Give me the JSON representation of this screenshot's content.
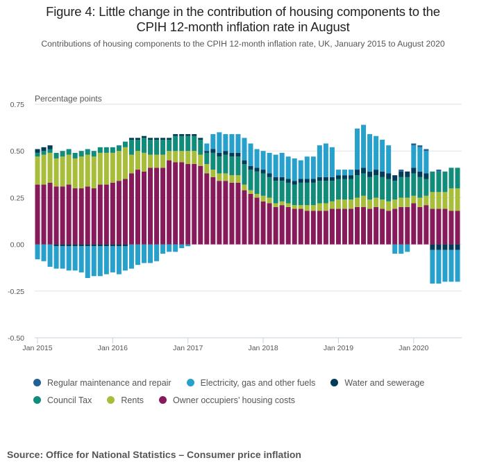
{
  "title_line1": "Figure 4: Little change in the contribution of housing components to the",
  "title_line2": "CPIH 12-month inflation rate in August",
  "subtitle": "Contributions of housing components to the CPIH 12-month inflation rate, UK, January 2015 to August 2020",
  "source": "Source: Office for National Statistics – Consumer price inflation",
  "chart_data": {
    "type": "bar",
    "stacked": true,
    "title": "Figure 4: Little change in the contribution of housing components to the CPIH 12-month inflation rate in August",
    "ylabel": "Percentage points",
    "xlabel": "",
    "ylim": [
      -0.5,
      0.75
    ],
    "yticks": [
      0.75,
      0.5,
      0.25,
      0.0,
      -0.25,
      -0.5
    ],
    "ytick_labels": [
      "0.75",
      "0.50",
      "0.25",
      "0.00",
      "-0.25",
      "-0.50"
    ],
    "xtick_labels": [
      "Jan 2015",
      "Jan 2016",
      "Jan 2017",
      "Jan 2018",
      "Jan 2019",
      "Jan 2020"
    ],
    "xtick_index": [
      0,
      12,
      24,
      36,
      48,
      60
    ],
    "grid": true,
    "legend_position": "bottom",
    "categories": [
      "Jan 2015",
      "Feb 2015",
      "Mar 2015",
      "Apr 2015",
      "May 2015",
      "Jun 2015",
      "Jul 2015",
      "Aug 2015",
      "Sep 2015",
      "Oct 2015",
      "Nov 2015",
      "Dec 2015",
      "Jan 2016",
      "Feb 2016",
      "Mar 2016",
      "Apr 2016",
      "May 2016",
      "Jun 2016",
      "Jul 2016",
      "Aug 2016",
      "Sep 2016",
      "Oct 2016",
      "Nov 2016",
      "Dec 2016",
      "Jan 2017",
      "Feb 2017",
      "Mar 2017",
      "Apr 2017",
      "May 2017",
      "Jun 2017",
      "Jul 2017",
      "Aug 2017",
      "Sep 2017",
      "Oct 2017",
      "Nov 2017",
      "Dec 2017",
      "Jan 2018",
      "Feb 2018",
      "Mar 2018",
      "Apr 2018",
      "May 2018",
      "Jun 2018",
      "Jul 2018",
      "Aug 2018",
      "Sep 2018",
      "Oct 2018",
      "Nov 2018",
      "Dec 2018",
      "Jan 2019",
      "Feb 2019",
      "Mar 2019",
      "Apr 2019",
      "May 2019",
      "Jun 2019",
      "Jul 2019",
      "Aug 2019",
      "Sep 2019",
      "Oct 2019",
      "Nov 2019",
      "Dec 2019",
      "Jan 2020",
      "Feb 2020",
      "Mar 2020",
      "Apr 2020",
      "May 2020",
      "Jun 2020",
      "Jul 2020",
      "Aug 2020"
    ],
    "series": [
      {
        "name": "Owner occupiers’ housing costs",
        "color": "#871a5b",
        "values": [
          0.32,
          0.32,
          0.33,
          0.31,
          0.31,
          0.32,
          0.3,
          0.3,
          0.31,
          0.3,
          0.32,
          0.32,
          0.33,
          0.34,
          0.35,
          0.38,
          0.4,
          0.39,
          0.41,
          0.41,
          0.41,
          0.45,
          0.44,
          0.44,
          0.43,
          0.43,
          0.42,
          0.38,
          0.36,
          0.34,
          0.34,
          0.33,
          0.33,
          0.29,
          0.27,
          0.25,
          0.23,
          0.22,
          0.2,
          0.21,
          0.2,
          0.19,
          0.19,
          0.18,
          0.18,
          0.18,
          0.18,
          0.19,
          0.19,
          0.19,
          0.19,
          0.2,
          0.2,
          0.19,
          0.2,
          0.19,
          0.18,
          0.19,
          0.2,
          0.2,
          0.22,
          0.2,
          0.21,
          0.19,
          0.19,
          0.19,
          0.18,
          0.18
        ]
      },
      {
        "name": "Rents",
        "color": "#a8bd3a",
        "values": [
          0.15,
          0.16,
          0.16,
          0.15,
          0.16,
          0.16,
          0.16,
          0.17,
          0.17,
          0.17,
          0.17,
          0.17,
          0.16,
          0.16,
          0.17,
          0.1,
          0.1,
          0.1,
          0.07,
          0.07,
          0.07,
          0.05,
          0.06,
          0.06,
          0.07,
          0.07,
          0.06,
          0.05,
          0.04,
          0.04,
          0.04,
          0.04,
          0.04,
          0.03,
          0.02,
          0.02,
          0.03,
          0.03,
          0.02,
          0.02,
          0.02,
          0.02,
          0.02,
          0.03,
          0.03,
          0.04,
          0.04,
          0.04,
          0.05,
          0.05,
          0.05,
          0.05,
          0.06,
          0.05,
          0.05,
          0.05,
          0.05,
          0.05,
          0.05,
          0.05,
          0.04,
          0.05,
          0.05,
          0.09,
          0.09,
          0.09,
          0.12,
          0.12
        ]
      },
      {
        "name": "Council Tax",
        "color": "#118c7b",
        "values": [
          0.02,
          0.02,
          0.02,
          0.03,
          0.03,
          0.03,
          0.03,
          0.03,
          0.03,
          0.03,
          0.03,
          0.03,
          0.03,
          0.03,
          0.03,
          0.08,
          0.06,
          0.08,
          0.08,
          0.08,
          0.08,
          0.06,
          0.08,
          0.08,
          0.08,
          0.08,
          0.08,
          0.06,
          0.09,
          0.09,
          0.1,
          0.1,
          0.1,
          0.11,
          0.11,
          0.12,
          0.12,
          0.11,
          0.12,
          0.11,
          0.11,
          0.11,
          0.12,
          0.12,
          0.12,
          0.12,
          0.12,
          0.11,
          0.11,
          0.11,
          0.11,
          0.12,
          0.12,
          0.12,
          0.12,
          0.12,
          0.12,
          0.1,
          0.11,
          0.11,
          0.12,
          0.11,
          0.09,
          0.11,
          0.11,
          0.11,
          0.11,
          0.11
        ]
      },
      {
        "name": "Water and sewerage",
        "color": "#003c57",
        "values": [
          0.02,
          0.02,
          0.02,
          0.0,
          0.0,
          0.0,
          0.0,
          0.0,
          0.0,
          0.0,
          0.0,
          0.0,
          0.0,
          0.0,
          0.0,
          0.01,
          0.01,
          0.01,
          0.01,
          0.01,
          0.01,
          0.01,
          0.01,
          0.01,
          0.01,
          0.01,
          0.01,
          0.01,
          0.02,
          0.02,
          0.02,
          0.02,
          0.02,
          0.02,
          0.02,
          0.02,
          0.02,
          0.02,
          0.02,
          0.02,
          0.02,
          0.02,
          0.02,
          0.02,
          0.02,
          0.02,
          0.02,
          0.02,
          0.02,
          0.02,
          0.02,
          0.03,
          0.03,
          0.03,
          0.03,
          0.03,
          0.03,
          0.03,
          0.03,
          0.03,
          0.03,
          0.03,
          0.03,
          0.0,
          0.0,
          0.0,
          0.0,
          0.0
        ]
      },
      {
        "name": "Electricity, gas and other fuels",
        "color": "#27a0cc",
        "values": [
          -0.08,
          -0.09,
          -0.12,
          -0.12,
          -0.12,
          -0.13,
          -0.13,
          -0.14,
          -0.17,
          -0.16,
          -0.16,
          -0.15,
          -0.14,
          -0.15,
          -0.13,
          -0.13,
          -0.11,
          -0.1,
          -0.1,
          -0.09,
          -0.05,
          -0.04,
          -0.04,
          -0.02,
          -0.01,
          0.0,
          0.0,
          0.04,
          0.08,
          0.11,
          0.09,
          0.1,
          0.1,
          0.12,
          0.12,
          0.1,
          0.1,
          0.11,
          0.12,
          0.13,
          0.12,
          0.12,
          0.1,
          0.12,
          0.12,
          0.17,
          0.18,
          0.16,
          0.03,
          0.03,
          0.03,
          0.22,
          0.23,
          0.2,
          0.18,
          0.17,
          0.15,
          0.0,
          0.0,
          0.0,
          0.12,
          0.13,
          0.12,
          -0.18,
          -0.18,
          -0.17,
          -0.17,
          -0.17
        ]
      },
      {
        "name": "Regular maintenance and repair",
        "color": "#206095",
        "values": [
          0.0,
          0.0,
          0.0,
          0.0,
          0.0,
          0.0,
          0.0,
          0.0,
          0.0,
          0.0,
          0.0,
          0.0,
          0.0,
          0.0,
          0.0,
          0.0,
          0.0,
          0.0,
          0.0,
          0.0,
          0.0,
          0.0,
          0.0,
          0.0,
          0.0,
          0.0,
          0.0,
          0.0,
          0.0,
          0.0,
          0.0,
          0.0,
          0.0,
          0.0,
          0.0,
          0.0,
          0.0,
          0.0,
          0.0,
          0.0,
          0.0,
          0.0,
          0.0,
          0.0,
          0.0,
          0.0,
          0.0,
          0.0,
          0.0,
          0.0,
          0.0,
          0.0,
          0.0,
          0.0,
          0.0,
          0.0,
          0.0,
          0.0,
          0.01,
          0.0,
          0.01,
          0.01,
          0.01,
          0.0,
          0.01,
          0.0,
          0.0,
          0.0
        ]
      }
    ],
    "negative_extras": {
      "Water and sewerage": [
        0,
        0,
        0,
        -0.01,
        -0.01,
        -0.01,
        -0.01,
        -0.01,
        -0.01,
        -0.01,
        -0.01,
        -0.01,
        -0.01,
        -0.01,
        -0.01,
        0,
        0,
        0,
        0,
        0,
        0,
        0,
        0,
        0,
        0,
        0,
        0,
        0,
        0,
        0,
        0,
        0,
        0,
        0,
        0,
        0,
        0,
        0,
        0,
        0,
        0,
        0,
        0,
        0,
        0,
        0,
        0,
        0,
        0,
        0,
        0,
        0,
        0,
        0,
        0,
        0,
        0,
        0,
        0,
        0,
        0,
        0,
        0,
        -0.03,
        -0.03,
        -0.03,
        -0.03,
        -0.03
      ],
      "Electricity, gas and other fuels": [
        0,
        0,
        0,
        0,
        0,
        0,
        0,
        0,
        0,
        0,
        0,
        0,
        0,
        0,
        0,
        0,
        0,
        0,
        0,
        0,
        0,
        0,
        0,
        0,
        0,
        0,
        0,
        0,
        0,
        0,
        0,
        0,
        0,
        0,
        0,
        0,
        0,
        0,
        0,
        0,
        0,
        0,
        0,
        0,
        0,
        0,
        0,
        0,
        0,
        0,
        0,
        0,
        0,
        0,
        0,
        0,
        0,
        -0.05,
        -0.05,
        -0.04,
        0,
        0,
        0,
        0,
        0,
        0,
        0,
        0
      ]
    }
  },
  "legend": [
    {
      "label": "Regular maintenance and repair",
      "color": "#206095"
    },
    {
      "label": "Electricity, gas and other fuels",
      "color": "#27a0cc"
    },
    {
      "label": "Water and sewerage",
      "color": "#003c57"
    },
    {
      "label": "Council Tax",
      "color": "#118c7b"
    },
    {
      "label": "Rents",
      "color": "#a8bd3a"
    },
    {
      "label": "Owner occupiers’ housing costs",
      "color": "#871a5b"
    }
  ]
}
